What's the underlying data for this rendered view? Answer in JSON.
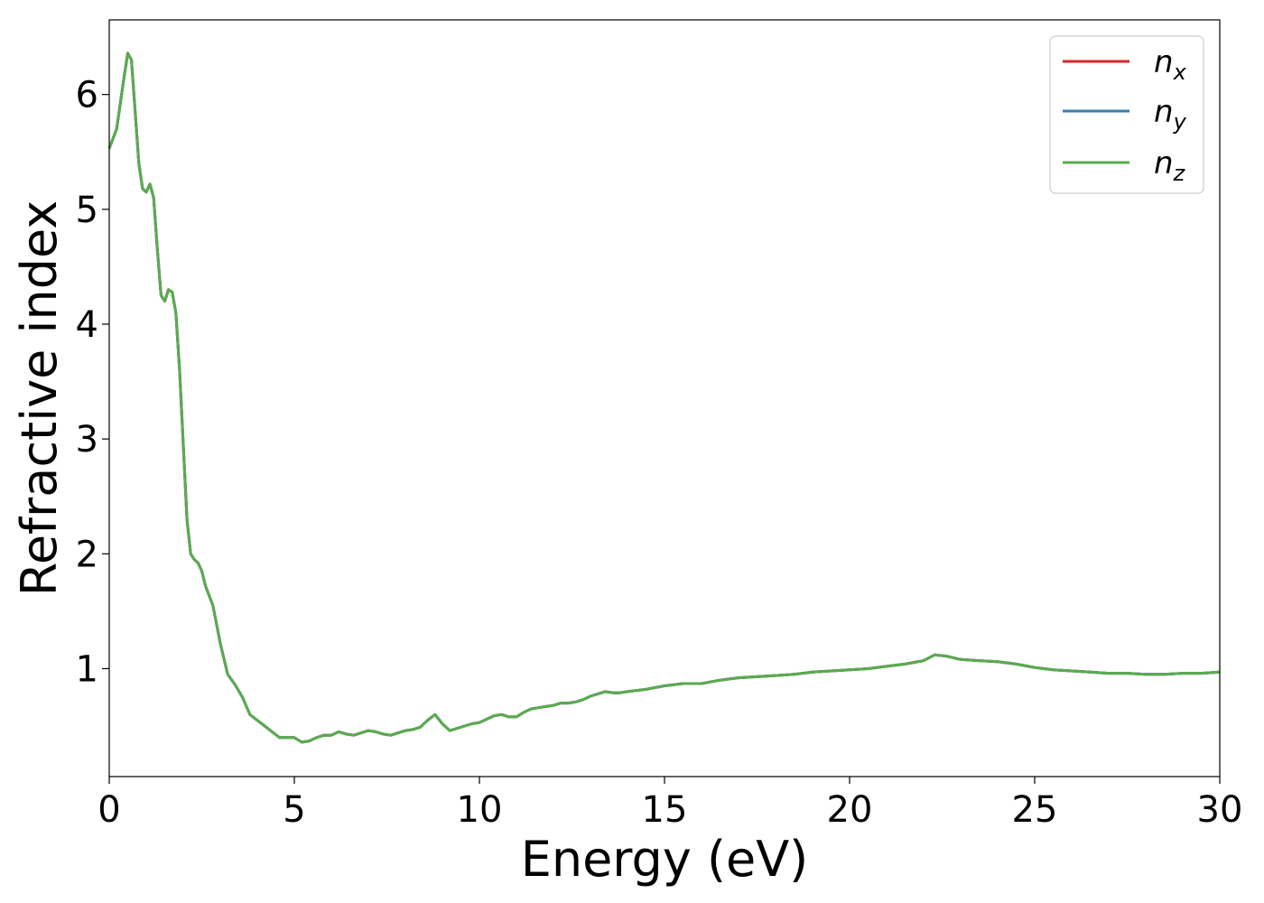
{
  "chart_data": {
    "type": "line",
    "title": "",
    "xlabel": "Energy (eV)",
    "ylabel": "Refractive index",
    "xlim": [
      0,
      30
    ],
    "ylim": [
      0.06,
      6.65
    ],
    "xticks": [
      0,
      5,
      10,
      15,
      20,
      25,
      30
    ],
    "yticks": [
      1,
      2,
      3,
      4,
      5,
      6
    ],
    "grid": false,
    "legend_position": "top-right",
    "colors": {
      "nx": "#d62728",
      "ny": "#3a7cae",
      "nz": "#5aab4f"
    },
    "legend": [
      {
        "base": "n",
        "sub": "x",
        "color": "#d62728"
      },
      {
        "base": "n",
        "sub": "y",
        "color": "#3a7cae"
      },
      {
        "base": "n",
        "sub": "z",
        "color": "#5aab4f"
      }
    ],
    "x": [
      0.0,
      0.2,
      0.4,
      0.5,
      0.6,
      0.7,
      0.8,
      0.9,
      1.0,
      1.1,
      1.2,
      1.3,
      1.4,
      1.5,
      1.6,
      1.7,
      1.8,
      1.9,
      2.0,
      2.1,
      2.2,
      2.3,
      2.4,
      2.5,
      2.6,
      2.8,
      3.0,
      3.2,
      3.4,
      3.6,
      3.8,
      4.0,
      4.2,
      4.4,
      4.6,
      4.8,
      5.0,
      5.2,
      5.4,
      5.6,
      5.8,
      6.0,
      6.2,
      6.4,
      6.6,
      6.8,
      7.0,
      7.2,
      7.4,
      7.6,
      7.8,
      8.0,
      8.2,
      8.4,
      8.6,
      8.8,
      9.0,
      9.2,
      9.4,
      9.6,
      9.8,
      10.0,
      10.2,
      10.4,
      10.6,
      10.8,
      11.0,
      11.2,
      11.4,
      11.6,
      11.8,
      12.0,
      12.2,
      12.4,
      12.6,
      12.8,
      13.0,
      13.2,
      13.4,
      13.6,
      13.8,
      14.0,
      14.5,
      15.0,
      15.5,
      16.0,
      16.5,
      17.0,
      17.5,
      18.0,
      18.5,
      19.0,
      19.5,
      20.0,
      20.5,
      21.0,
      21.5,
      22.0,
      22.3,
      22.6,
      23.0,
      23.5,
      24.0,
      24.5,
      25.0,
      25.5,
      26.0,
      26.5,
      27.0,
      27.5,
      28.0,
      28.5,
      29.0,
      29.5,
      30.0
    ],
    "series": [
      {
        "name": "nx",
        "color": "#d62728",
        "values": [
          5.53,
          5.7,
          6.15,
          6.36,
          6.3,
          5.85,
          5.4,
          5.18,
          5.15,
          5.22,
          5.1,
          4.65,
          4.25,
          4.2,
          4.3,
          4.28,
          4.1,
          3.6,
          2.95,
          2.3,
          2.0,
          1.95,
          1.92,
          1.85,
          1.72,
          1.55,
          1.22,
          0.95,
          0.86,
          0.75,
          0.6,
          0.55,
          0.5,
          0.45,
          0.4,
          0.4,
          0.4,
          0.36,
          0.37,
          0.4,
          0.42,
          0.42,
          0.45,
          0.43,
          0.42,
          0.44,
          0.46,
          0.45,
          0.43,
          0.42,
          0.44,
          0.46,
          0.47,
          0.49,
          0.55,
          0.6,
          0.52,
          0.46,
          0.48,
          0.5,
          0.52,
          0.53,
          0.56,
          0.59,
          0.6,
          0.58,
          0.58,
          0.62,
          0.65,
          0.66,
          0.67,
          0.68,
          0.7,
          0.7,
          0.71,
          0.73,
          0.76,
          0.78,
          0.8,
          0.79,
          0.79,
          0.8,
          0.82,
          0.85,
          0.87,
          0.87,
          0.9,
          0.92,
          0.93,
          0.94,
          0.95,
          0.97,
          0.98,
          0.99,
          1.0,
          1.02,
          1.04,
          1.07,
          1.12,
          1.11,
          1.08,
          1.07,
          1.06,
          1.04,
          1.01,
          0.99,
          0.98,
          0.97,
          0.96,
          0.96,
          0.95,
          0.95,
          0.96,
          0.96,
          0.97
        ]
      },
      {
        "name": "ny",
        "color": "#3a7cae",
        "values": [
          5.53,
          5.7,
          6.15,
          6.36,
          6.3,
          5.85,
          5.4,
          5.18,
          5.15,
          5.22,
          5.1,
          4.65,
          4.25,
          4.2,
          4.3,
          4.28,
          4.1,
          3.6,
          2.95,
          2.3,
          2.0,
          1.95,
          1.92,
          1.85,
          1.72,
          1.55,
          1.22,
          0.95,
          0.86,
          0.75,
          0.6,
          0.55,
          0.5,
          0.45,
          0.4,
          0.4,
          0.4,
          0.36,
          0.37,
          0.4,
          0.42,
          0.42,
          0.45,
          0.43,
          0.42,
          0.44,
          0.46,
          0.45,
          0.43,
          0.42,
          0.44,
          0.46,
          0.47,
          0.49,
          0.55,
          0.6,
          0.52,
          0.46,
          0.48,
          0.5,
          0.52,
          0.53,
          0.56,
          0.59,
          0.6,
          0.58,
          0.58,
          0.62,
          0.65,
          0.66,
          0.67,
          0.68,
          0.7,
          0.7,
          0.71,
          0.73,
          0.76,
          0.78,
          0.8,
          0.79,
          0.79,
          0.8,
          0.82,
          0.85,
          0.87,
          0.87,
          0.9,
          0.92,
          0.93,
          0.94,
          0.95,
          0.97,
          0.98,
          0.99,
          1.0,
          1.02,
          1.04,
          1.07,
          1.12,
          1.11,
          1.08,
          1.07,
          1.06,
          1.04,
          1.01,
          0.99,
          0.98,
          0.97,
          0.96,
          0.96,
          0.95,
          0.95,
          0.96,
          0.96,
          0.97
        ]
      },
      {
        "name": "nz",
        "color": "#5aab4f",
        "values": [
          5.53,
          5.7,
          6.15,
          6.36,
          6.3,
          5.85,
          5.4,
          5.18,
          5.15,
          5.22,
          5.1,
          4.65,
          4.25,
          4.2,
          4.3,
          4.28,
          4.1,
          3.6,
          2.95,
          2.3,
          2.0,
          1.95,
          1.92,
          1.85,
          1.72,
          1.55,
          1.22,
          0.95,
          0.86,
          0.75,
          0.6,
          0.55,
          0.5,
          0.45,
          0.4,
          0.4,
          0.4,
          0.36,
          0.37,
          0.4,
          0.42,
          0.42,
          0.45,
          0.43,
          0.42,
          0.44,
          0.46,
          0.45,
          0.43,
          0.42,
          0.44,
          0.46,
          0.47,
          0.49,
          0.55,
          0.6,
          0.52,
          0.46,
          0.48,
          0.5,
          0.52,
          0.53,
          0.56,
          0.59,
          0.6,
          0.58,
          0.58,
          0.62,
          0.65,
          0.66,
          0.67,
          0.68,
          0.7,
          0.7,
          0.71,
          0.73,
          0.76,
          0.78,
          0.8,
          0.79,
          0.79,
          0.8,
          0.82,
          0.85,
          0.87,
          0.87,
          0.9,
          0.92,
          0.93,
          0.94,
          0.95,
          0.97,
          0.98,
          0.99,
          1.0,
          1.02,
          1.04,
          1.07,
          1.12,
          1.11,
          1.08,
          1.07,
          1.06,
          1.04,
          1.01,
          0.99,
          0.98,
          0.97,
          0.96,
          0.96,
          0.95,
          0.95,
          0.96,
          0.96,
          0.97
        ]
      }
    ]
  }
}
